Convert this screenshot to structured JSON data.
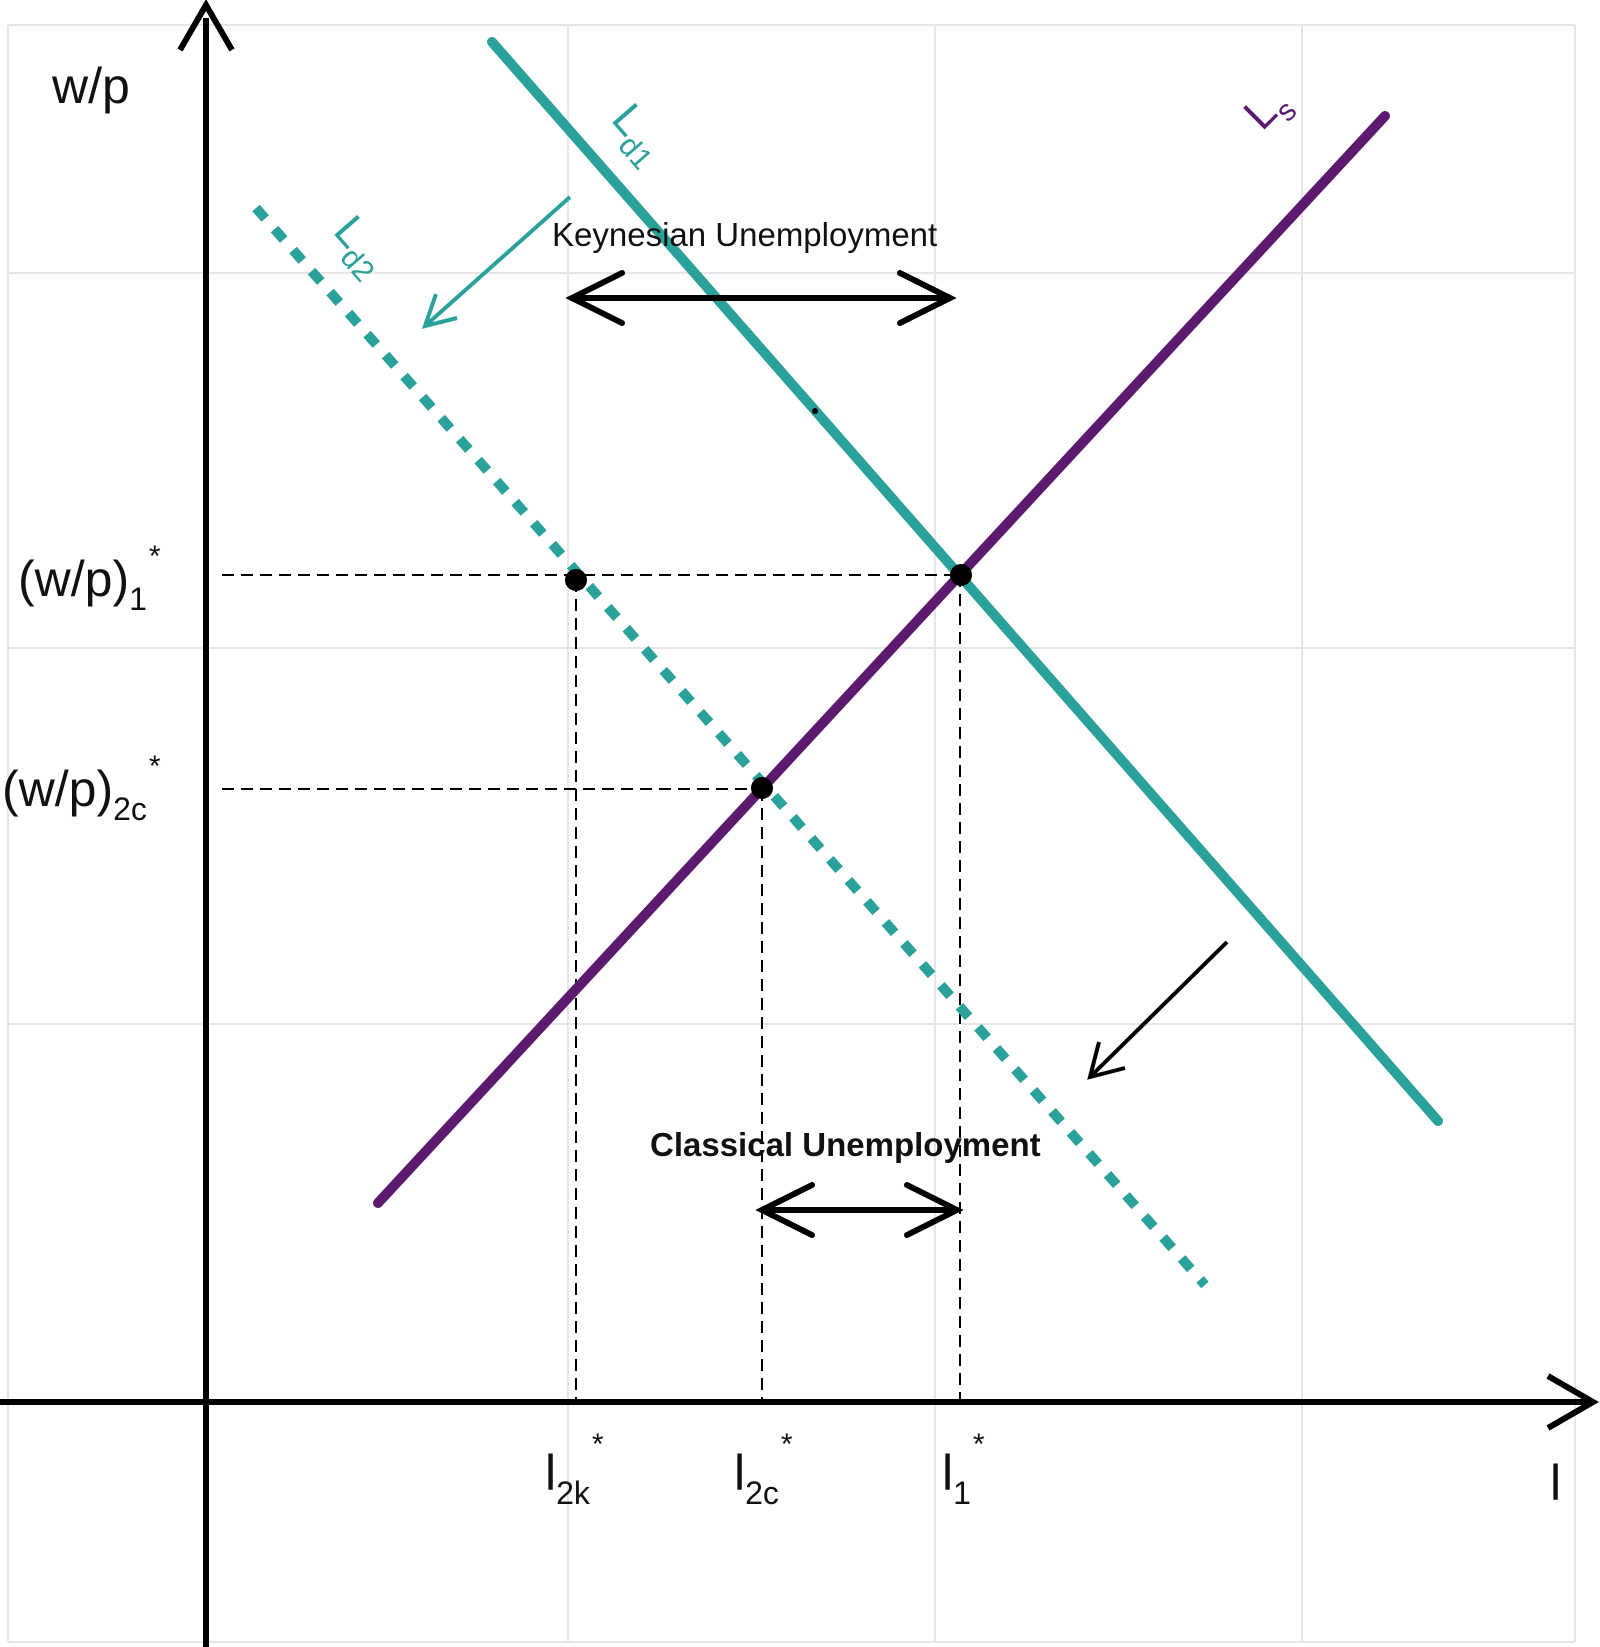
{
  "axes": {
    "y_label": "w/p",
    "x_label": "l"
  },
  "curves": {
    "ld1": {
      "base": "L",
      "sub": "d1",
      "color": "#2aa19b"
    },
    "ld2": {
      "base": "L",
      "sub": "d2",
      "color": "#2aa19b"
    },
    "ls": {
      "base": "L",
      "sub": "s",
      "color": "#5b1a6e"
    }
  },
  "wage_levels": {
    "wp1": {
      "base": "(w/p)",
      "sub": "1",
      "sup": "*"
    },
    "wp2c": {
      "base": "(w/p)",
      "sub": "2c",
      "sup": "*"
    }
  },
  "employment_levels": {
    "l2k": {
      "base": "l",
      "sub": "2k",
      "sup": "*"
    },
    "l2c": {
      "base": "l",
      "sub": "2c",
      "sup": "*"
    },
    "l1": {
      "base": "l",
      "sub": "1",
      "sup": "*"
    }
  },
  "annotations": {
    "keynesian": "Keynesian Unemployment",
    "classical": "Classical Unemployment"
  }
}
